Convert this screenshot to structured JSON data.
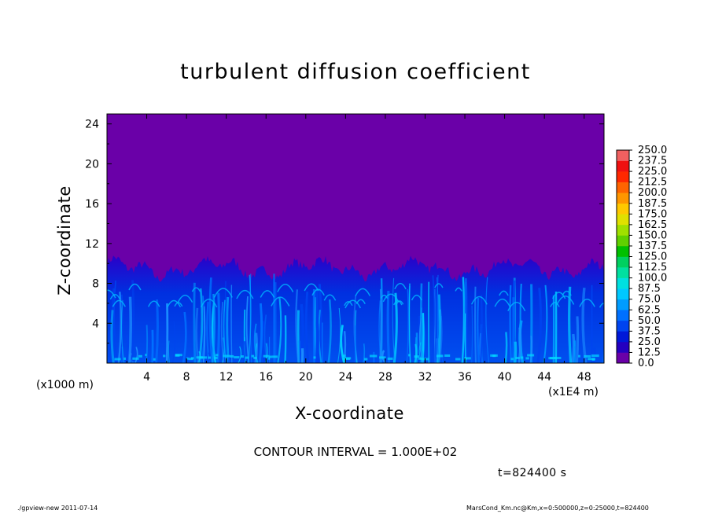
{
  "chart_data": {
    "type": "heatmap",
    "title": "turbulent diffusion coefficient",
    "xlabel": "X-coordinate",
    "ylabel": "Z-coordinate",
    "x_unit_label": "(x1E4 m)",
    "y_unit_label": "(x1000 m)",
    "xlim": [
      0,
      50
    ],
    "ylim": [
      0,
      25
    ],
    "x_ticks": [
      4,
      8,
      12,
      16,
      20,
      24,
      28,
      32,
      36,
      40,
      44,
      48
    ],
    "y_ticks": [
      4,
      8,
      12,
      16,
      20,
      24
    ],
    "colorbar_levels": [
      "0.0",
      "12.5",
      "25.0",
      "37.5",
      "50.0",
      "62.5",
      "75.0",
      "87.5",
      "100.0",
      "112.5",
      "125.0",
      "137.5",
      "150.0",
      "162.5",
      "175.0",
      "187.5",
      "200.0",
      "212.5",
      "225.0",
      "237.5",
      "250.0"
    ],
    "colorbar_colors": [
      "#6a00a8",
      "#2400c0",
      "#0018d8",
      "#0044f0",
      "#0070ff",
      "#009cff",
      "#00c8ff",
      "#00e0e0",
      "#00e0a0",
      "#00d060",
      "#00c000",
      "#60d000",
      "#a0e000",
      "#e0e000",
      "#ffc800",
      "#ff9600",
      "#ff6400",
      "#ff2800",
      "#f01010",
      "#f06060"
    ],
    "background_value_color": "#6a00a8",
    "turbulent_layer_top_approx": 9.5,
    "grid": false
  },
  "contour_interval": "CONTOUR INTERVAL = 1.000E+02",
  "time_label": "t=824400 s",
  "footer_left": "./gpview-new  2011-07-14",
  "footer_right": "MarsCond_Km.nc@Km,x=0:500000,z=0:25000,t=824400"
}
